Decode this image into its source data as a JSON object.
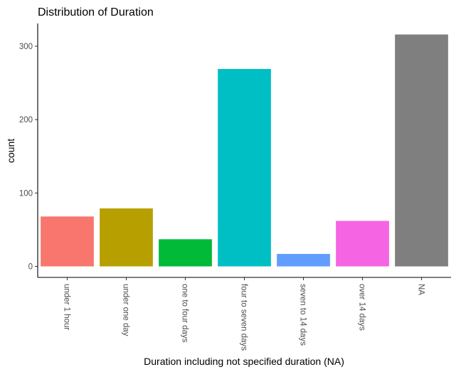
{
  "chart_data": {
    "type": "bar",
    "title": "Distribution of Duration",
    "xlabel": "Duration including not specified duration (NA)",
    "ylabel": "count",
    "categories": [
      "under 1 hour",
      "under one day",
      "one to four days",
      "four to seven days",
      "seven to 14 days",
      "over 14 days",
      "NA"
    ],
    "values": [
      68,
      79,
      37,
      269,
      17,
      62,
      316
    ],
    "colors": [
      "#F8766D",
      "#B79F00",
      "#00BA38",
      "#00BFC4",
      "#619CFF",
      "#F564E3",
      "#7F7F7F"
    ],
    "y_ticks": [
      0,
      100,
      200,
      300
    ],
    "ylim": [
      -15,
      331
    ],
    "grid": false,
    "legend": "none"
  }
}
